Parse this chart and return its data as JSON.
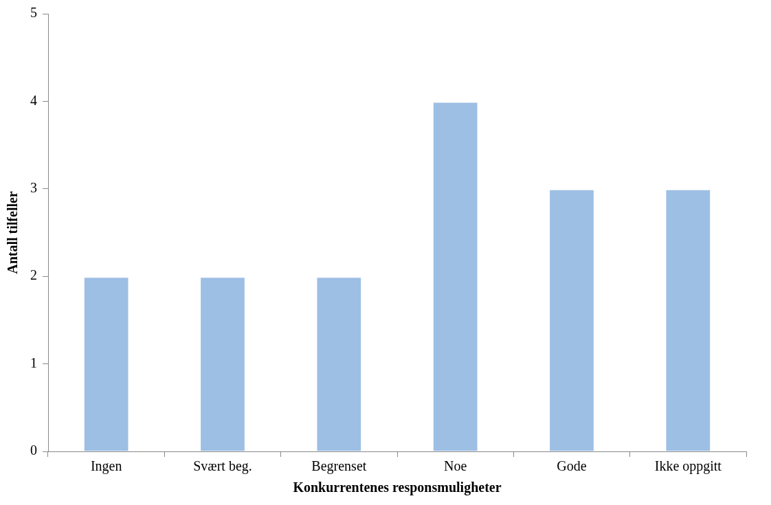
{
  "chart_data": {
    "type": "bar",
    "xlabel": "Konkurrentenes responsmuligheter",
    "ylabel": "Antall tilfeller",
    "categories": [
      "Ingen",
      "Svært beg.",
      "Begrenset",
      "Noe",
      "Gode",
      "Ikke oppgitt"
    ],
    "values": [
      2,
      2,
      2,
      4,
      3,
      3
    ],
    "color": "#9dbfe4",
    "ylim": [
      0,
      5
    ],
    "yticks": [
      0,
      1,
      2,
      3,
      4,
      5
    ],
    "grid": false,
    "legend": false
  }
}
